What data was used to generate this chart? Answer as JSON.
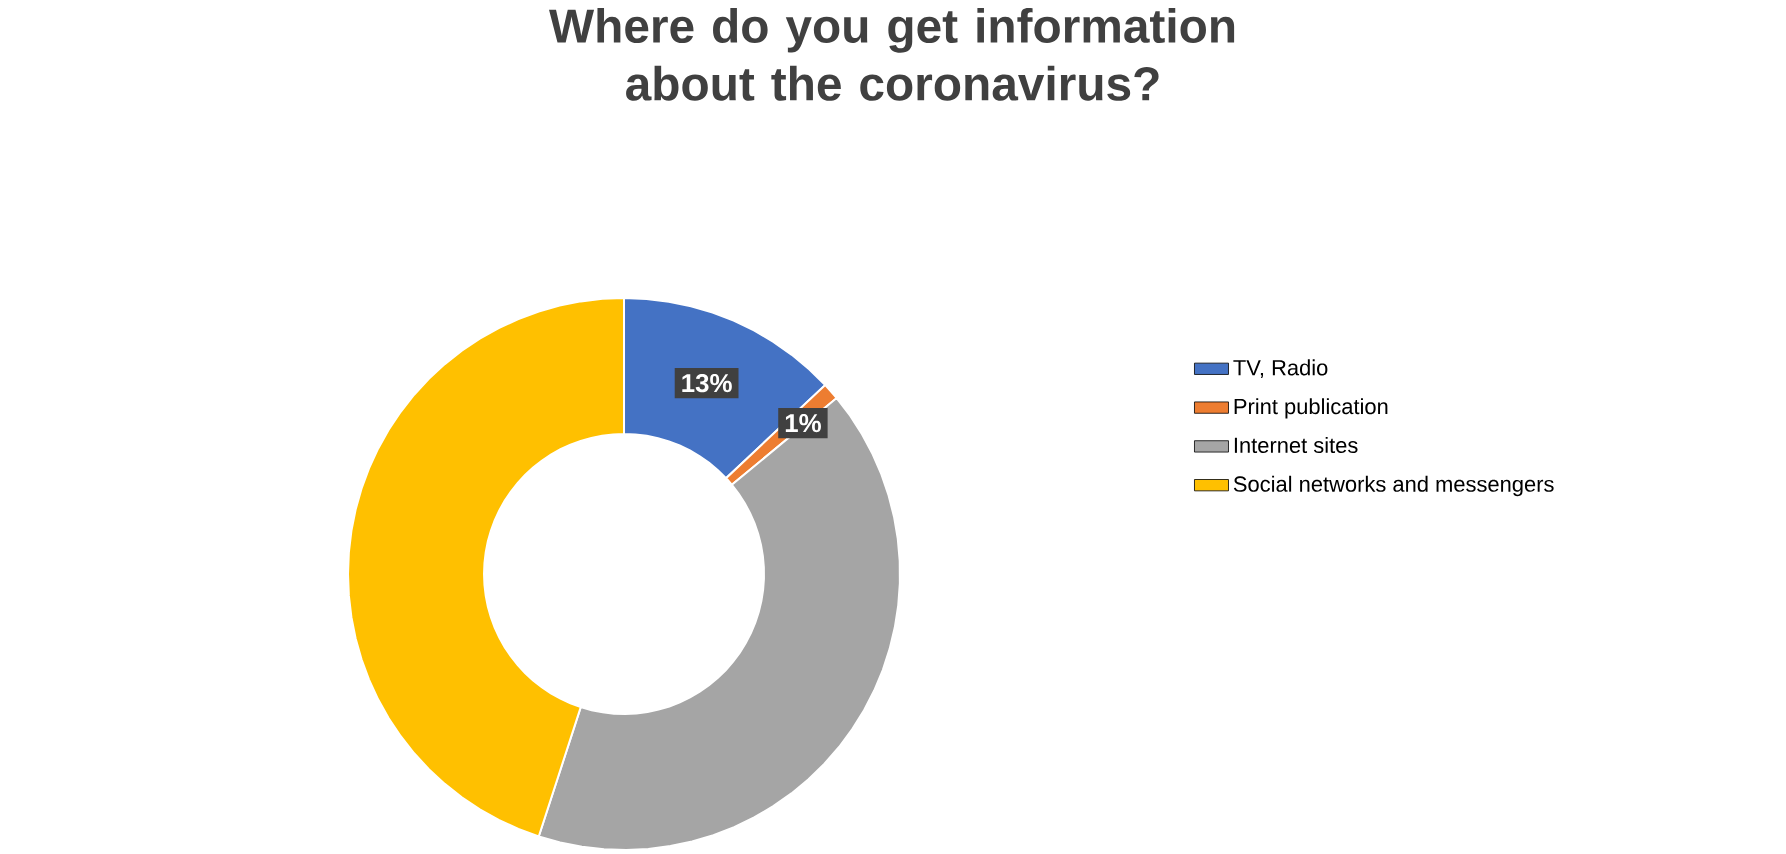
{
  "chart_data": {
    "type": "donut",
    "title": "Where do you get information about the coronavirus?",
    "categories": [
      "TV, Radio",
      "Print publication",
      "Internet sites",
      "Social networks and messengers"
    ],
    "values": [
      13,
      1,
      41,
      45
    ],
    "colors": [
      "#4472c4",
      "#ed7d31",
      "#a5a5a5",
      "#ffc000"
    ],
    "value_labels": [
      "13%",
      "1%",
      null,
      null
    ],
    "legend": "right"
  }
}
